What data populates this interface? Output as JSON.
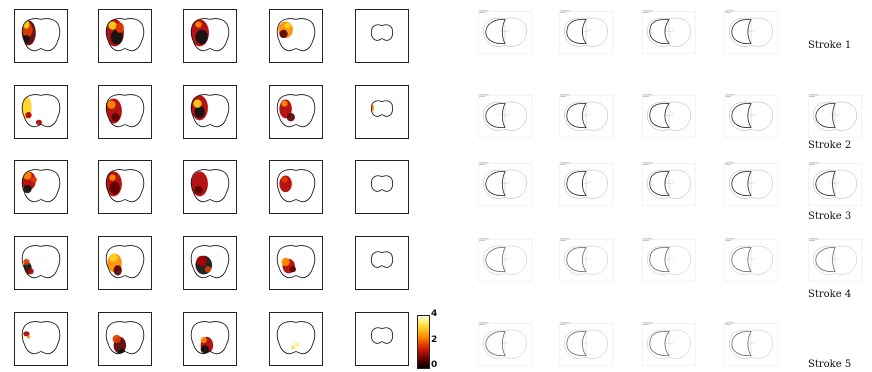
{
  "row_labels": [
    "Stroke 1",
    "Stroke 2",
    "Stroke 3",
    "Stroke 4",
    "Stroke 5"
  ],
  "colorbar": {
    "max": "4",
    "mid": "2",
    "min": "0"
  },
  "heat_colors": [
    "#fff3a0",
    "#ffd21a",
    "#ff8c00",
    "#e03b00",
    "#b00000",
    "#5a0000",
    "#111111"
  ]
}
